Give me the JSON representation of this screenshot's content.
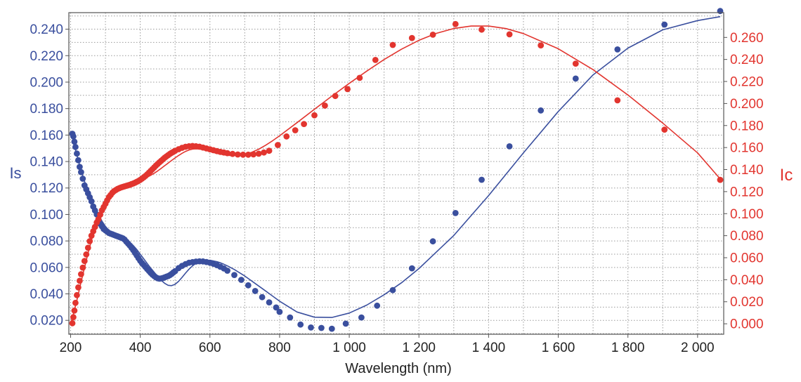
{
  "chart_data": {
    "type": "scatter",
    "xlabel": "Wavelength (nm)",
    "ylabel_left": "Is",
    "ylabel_right": "Ic",
    "xlim": [
      195,
      2075
    ],
    "ylim_left": [
      0.0095,
      0.2525
    ],
    "ylim_right": [
      -0.0095,
      0.2825
    ],
    "x_ticks": [
      200,
      400,
      600,
      800,
      1000,
      1200,
      1400,
      1600,
      1800,
      2000
    ],
    "x_tick_labels": [
      "200",
      "400",
      "600",
      "800",
      "1 000",
      "1 200",
      "1 400",
      "1 600",
      "1 800",
      "2 000"
    ],
    "y_left_ticks": [
      0.02,
      0.04,
      0.06,
      0.08,
      0.1,
      0.12,
      0.14,
      0.16,
      0.18,
      0.2,
      0.22,
      0.24
    ],
    "y_left_tick_labels": [
      "0.020",
      "0.040",
      "0.060",
      "0.080",
      "0.100",
      "0.120",
      "0.140",
      "0.160",
      "0.180",
      "0.200",
      "0.220",
      "0.240"
    ],
    "y_right_ticks": [
      0,
      0.02,
      0.04,
      0.06,
      0.08,
      0.1,
      0.12,
      0.14,
      0.16,
      0.18,
      0.2,
      0.22,
      0.24,
      0.26
    ],
    "y_right_tick_labels": [
      "0.000",
      "0.020",
      "0.040",
      "0.060",
      "0.080",
      "0.100",
      "0.120",
      "0.140",
      "0.160",
      "0.180",
      "0.200",
      "0.220",
      "0.240",
      "0.260"
    ],
    "grid": true,
    "grid_x_step": 100,
    "grid_left_step": 0.01,
    "colors": {
      "Is": "#3a4f9e",
      "Ic": "#e2352f",
      "grid": "#9a9a9a",
      "frame": "#555555"
    },
    "series": [
      {
        "name": "Is",
        "axis": "left",
        "style": "markers",
        "x": [
          205,
          208,
          211,
          214,
          218,
          222,
          226,
          230,
          235,
          240,
          245,
          250,
          255,
          260,
          265,
          270,
          275,
          280,
          285,
          290,
          295,
          300,
          305,
          310,
          315,
          320,
          325,
          330,
          335,
          340,
          345,
          350,
          355,
          360,
          365,
          370,
          375,
          380,
          385,
          390,
          395,
          400,
          405,
          410,
          415,
          420,
          425,
          430,
          435,
          440,
          445,
          450,
          455,
          460,
          465,
          470,
          475,
          480,
          485,
          490,
          495,
          500,
          510,
          520,
          530,
          540,
          550,
          560,
          570,
          580,
          590,
          600,
          610,
          620,
          630,
          640,
          650,
          670,
          690,
          710,
          730,
          750,
          770,
          790,
          800,
          830,
          860,
          890,
          920,
          950,
          990,
          1035,
          1080,
          1125,
          1180,
          1240,
          1305,
          1380,
          1460,
          1550,
          1650,
          1770,
          1905,
          2065
        ],
        "y": [
          0.161,
          0.159,
          0.155,
          0.151,
          0.146,
          0.141,
          0.136,
          0.132,
          0.127,
          0.122,
          0.119,
          0.116,
          0.113,
          0.11,
          0.106,
          0.103,
          0.1,
          0.096,
          0.093,
          0.091,
          0.089,
          0.088,
          0.087,
          0.086,
          0.0855,
          0.085,
          0.0845,
          0.084,
          0.0835,
          0.083,
          0.0825,
          0.082,
          0.081,
          0.0795,
          0.078,
          0.0765,
          0.0748,
          0.073,
          0.071,
          0.069,
          0.067,
          0.065,
          0.0633,
          0.0618,
          0.0603,
          0.0588,
          0.0573,
          0.0558,
          0.0545,
          0.0535,
          0.0525,
          0.0518,
          0.0515,
          0.0517,
          0.052,
          0.0525,
          0.053,
          0.0535,
          0.0542,
          0.0551,
          0.0562,
          0.0572,
          0.0595,
          0.0612,
          0.0625,
          0.0635,
          0.064,
          0.0644,
          0.0646,
          0.0645,
          0.0641,
          0.0635,
          0.0627,
          0.0617,
          0.0605,
          0.0592,
          0.0575,
          0.0543,
          0.0506,
          0.0465,
          0.0422,
          0.0375,
          0.0336,
          0.0297,
          0.0264,
          0.0222,
          0.0168,
          0.0146,
          0.0143,
          0.0137,
          0.0175,
          0.0222,
          0.0311,
          0.0428,
          0.0593,
          0.0797,
          0.1011,
          0.1262,
          0.1515,
          0.1786,
          0.2027,
          0.2247,
          0.2435,
          0.2537
        ]
      },
      {
        "name": "Is",
        "axis": "left",
        "style": "line",
        "x": [
          200,
          210,
          220,
          230,
          240,
          250,
          260,
          270,
          280,
          290,
          300,
          310,
          320,
          330,
          340,
          350,
          360,
          370,
          380,
          390,
          400,
          410,
          420,
          430,
          440,
          450,
          460,
          470,
          480,
          490,
          500,
          510,
          520,
          530,
          540,
          550,
          560,
          570,
          580,
          590,
          600,
          610,
          620,
          630,
          640,
          650,
          670,
          700,
          750,
          800,
          850,
          900,
          950,
          1000,
          1050,
          1100,
          1150,
          1200,
          1300,
          1400,
          1500,
          1600,
          1700,
          1800,
          1900,
          2000,
          2065
        ],
        "y": [
          0.163,
          0.153,
          0.143,
          0.133,
          0.125,
          0.118,
          0.111,
          0.105,
          0.1,
          0.095,
          0.091,
          0.088,
          0.086,
          0.0845,
          0.0835,
          0.0825,
          0.081,
          0.079,
          0.0765,
          0.0735,
          0.07,
          0.0665,
          0.063,
          0.0595,
          0.0563,
          0.0532,
          0.0503,
          0.048,
          0.0465,
          0.0462,
          0.0472,
          0.0495,
          0.0525,
          0.0557,
          0.0587,
          0.0612,
          0.0631,
          0.0644,
          0.0651,
          0.0654,
          0.0653,
          0.0649,
          0.0643,
          0.0635,
          0.0624,
          0.0612,
          0.0584,
          0.0535,
          0.0441,
          0.0345,
          0.0263,
          0.0224,
          0.0222,
          0.0255,
          0.0315,
          0.0393,
          0.0484,
          0.0591,
          0.0841,
          0.1143,
          0.1465,
          0.1778,
          0.2055,
          0.2257,
          0.2395,
          0.2465,
          0.2495
        ]
      },
      {
        "name": "Ic",
        "axis": "right",
        "style": "markers",
        "x": [
          205,
          208,
          211,
          214,
          218,
          222,
          226,
          230,
          235,
          240,
          245,
          250,
          255,
          260,
          265,
          270,
          275,
          280,
          285,
          290,
          295,
          300,
          305,
          310,
          315,
          320,
          325,
          330,
          335,
          340,
          345,
          350,
          355,
          360,
          365,
          370,
          375,
          380,
          385,
          390,
          395,
          400,
          405,
          410,
          415,
          420,
          425,
          430,
          435,
          440,
          445,
          450,
          455,
          460,
          465,
          470,
          475,
          480,
          485,
          490,
          495,
          500,
          510,
          520,
          530,
          540,
          550,
          560,
          570,
          580,
          590,
          600,
          610,
          620,
          630,
          640,
          650,
          665,
          680,
          695,
          710,
          725,
          740,
          755,
          770,
          795,
          820,
          845,
          870,
          900,
          930,
          960,
          995,
          1030,
          1075,
          1125,
          1180,
          1240,
          1305,
          1380,
          1460,
          1550,
          1650,
          1770,
          1905,
          2065
        ],
        "y": [
          0.0005,
          0.006,
          0.012,
          0.019,
          0.026,
          0.033,
          0.039,
          0.045,
          0.051,
          0.057,
          0.063,
          0.069,
          0.075,
          0.08,
          0.084,
          0.088,
          0.092,
          0.095,
          0.099,
          0.103,
          0.106,
          0.109,
          0.112,
          0.115,
          0.117,
          0.119,
          0.1205,
          0.1215,
          0.1225,
          0.1232,
          0.1238,
          0.1243,
          0.1248,
          0.1253,
          0.1257,
          0.1262,
          0.1268,
          0.1274,
          0.1281,
          0.1289,
          0.1297,
          0.1307,
          0.1318,
          0.133,
          0.1343,
          0.1357,
          0.1372,
          0.1388,
          0.1404,
          0.142,
          0.1436,
          0.1451,
          0.1466,
          0.148,
          0.1494,
          0.1507,
          0.1519,
          0.1531,
          0.1542,
          0.1552,
          0.1561,
          0.157,
          0.1585,
          0.1598,
          0.1607,
          0.1612,
          0.1614,
          0.1612,
          0.1608,
          0.16,
          0.1592,
          0.1584,
          0.1576,
          0.1568,
          0.1561,
          0.1555,
          0.1549,
          0.1542,
          0.1537,
          0.1535,
          0.1535,
          0.1538,
          0.1544,
          0.1555,
          0.1571,
          0.1623,
          0.1701,
          0.1757,
          0.1814,
          0.1893,
          0.1981,
          0.2068,
          0.2131,
          0.2233,
          0.2395,
          0.2532,
          0.2595,
          0.2625,
          0.2721,
          0.2671,
          0.2628,
          0.2528,
          0.2362,
          0.2029,
          0.1763,
          0.1307
        ]
      },
      {
        "name": "Ic",
        "axis": "right",
        "style": "line",
        "x": [
          200,
          210,
          220,
          230,
          240,
          250,
          260,
          270,
          280,
          290,
          300,
          310,
          320,
          330,
          340,
          350,
          360,
          370,
          380,
          390,
          400,
          410,
          420,
          430,
          440,
          450,
          460,
          470,
          480,
          490,
          500,
          510,
          520,
          530,
          540,
          550,
          560,
          570,
          580,
          590,
          600,
          620,
          640,
          660,
          680,
          700,
          720,
          740,
          760,
          780,
          800,
          850,
          900,
          950,
          1000,
          1050,
          1100,
          1150,
          1200,
          1250,
          1300,
          1350,
          1400,
          1450,
          1500,
          1600,
          1700,
          1800,
          1900,
          2000,
          2065
        ],
        "y": [
          0.0,
          0.011,
          0.024,
          0.038,
          0.051,
          0.064,
          0.076,
          0.087,
          0.097,
          0.105,
          0.111,
          0.1155,
          0.119,
          0.1215,
          0.1235,
          0.125,
          0.1262,
          0.1272,
          0.1282,
          0.1292,
          0.1303,
          0.1316,
          0.1331,
          0.1348,
          0.1367,
          0.1388,
          0.1411,
          0.1435,
          0.1459,
          0.1483,
          0.1506,
          0.1528,
          0.1548,
          0.1565,
          0.1578,
          0.1586,
          0.1589,
          0.1587,
          0.1581,
          0.1573,
          0.1564,
          0.1547,
          0.1534,
          0.1527,
          0.1528,
          0.1538,
          0.1557,
          0.1585,
          0.1621,
          0.1662,
          0.1707,
          0.1826,
          0.1948,
          0.2067,
          0.2183,
          0.2294,
          0.2399,
          0.2493,
          0.2574,
          0.2637,
          0.2681,
          0.2703,
          0.2703,
          0.268,
          0.2635,
          0.2497,
          0.2307,
          0.2077,
          0.1822,
          0.1552,
          0.1315
        ]
      }
    ]
  }
}
